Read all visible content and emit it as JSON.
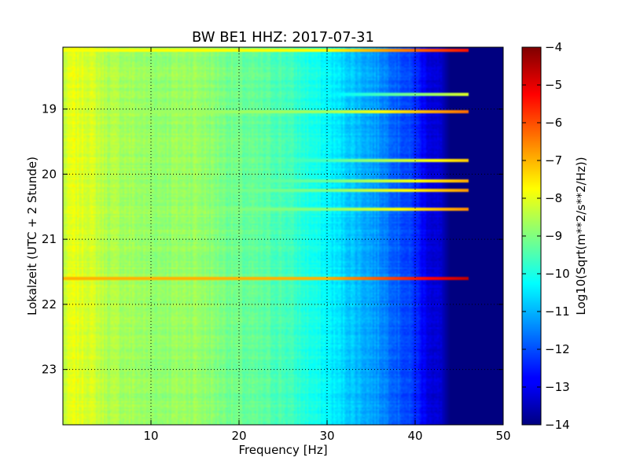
{
  "chart_data": {
    "type": "heatmap",
    "title": "BW BE1 HHZ: 2017-07-31",
    "xlabel": "Frequency [Hz]",
    "ylabel": "Lokalzeit (UTC + 2 Stunde)",
    "xlim": [
      0,
      50
    ],
    "ylim": [
      18.05,
      23.85
    ],
    "y_inverted": true,
    "x_ticks": [
      10,
      20,
      30,
      40,
      50
    ],
    "x_tick_labels": [
      "10",
      "20",
      "30",
      "40",
      "50"
    ],
    "y_ticks": [
      19,
      20,
      21,
      22,
      23
    ],
    "y_tick_labels": [
      "19",
      "20",
      "21",
      "22",
      "23"
    ],
    "grid": true,
    "colorbar": {
      "label": "Log10(Sqrt(m**2/s**2/Hz))",
      "range": [
        -14,
        -4
      ],
      "ticks": [
        -4,
        -5,
        -6,
        -7,
        -8,
        -9,
        -10,
        -11,
        -12,
        -13,
        -14
      ],
      "tick_labels": [
        "−4",
        "−5",
        "−6",
        "−7",
        "−8",
        "−9",
        "−10",
        "−11",
        "−12",
        "−13",
        "−14"
      ],
      "colormap": "jet"
    },
    "spectral_profile": {
      "frequency_hz": [
        0,
        1,
        3,
        5,
        10,
        15,
        20,
        25,
        30,
        33,
        36,
        38,
        40,
        41,
        42,
        43,
        44,
        45,
        50
      ],
      "level": [
        -8.4,
        -8.0,
        -8.1,
        -8.5,
        -8.8,
        -8.7,
        -9.2,
        -9.5,
        -10.3,
        -10.8,
        -11.3,
        -11.8,
        -12.3,
        -12.8,
        -13.1,
        -13.3,
        -14,
        -14,
        -14
      ]
    },
    "events": [
      {
        "time": 18.1,
        "level": -7.8
      },
      {
        "time": 18.77,
        "level": -10.5
      },
      {
        "time": 19.05,
        "level": -8.7
      },
      {
        "time": 19.8,
        "level": -9.6
      },
      {
        "time": 20.1,
        "level": -9.3
      },
      {
        "time": 20.25,
        "level": -9.1
      },
      {
        "time": 20.55,
        "level": -9.0
      },
      {
        "time": 21.6,
        "level": -7.0
      }
    ]
  }
}
